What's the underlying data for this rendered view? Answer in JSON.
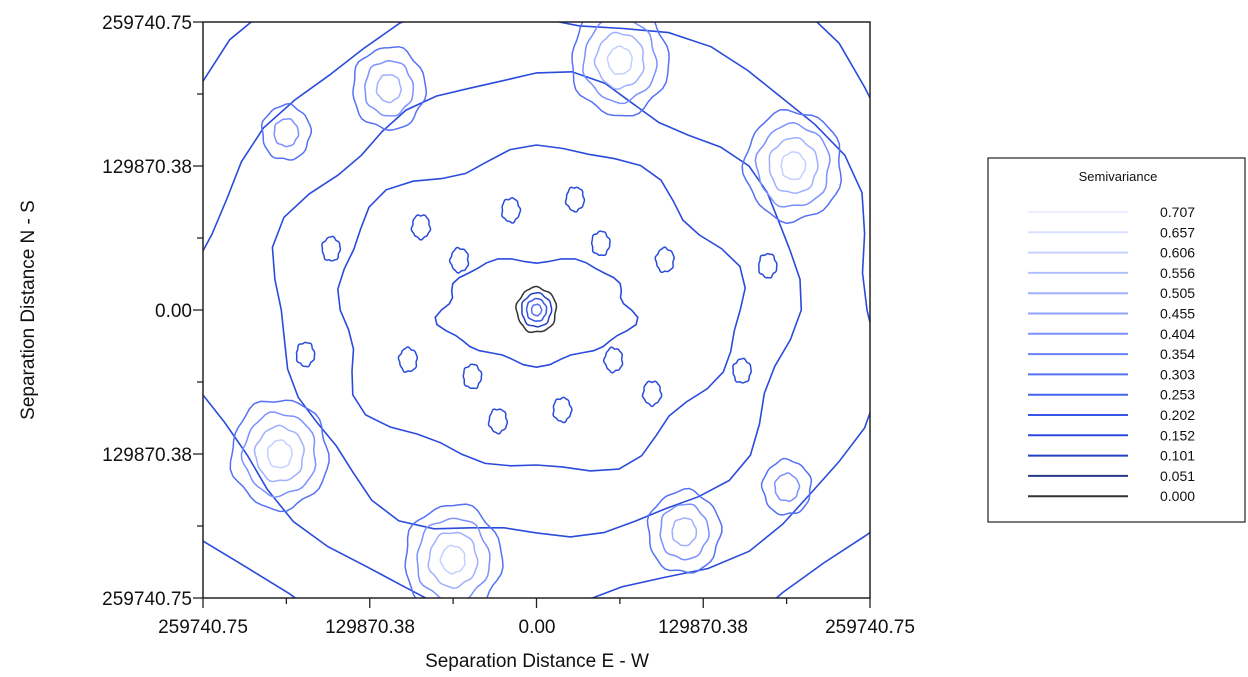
{
  "chart_data": {
    "type": "contour",
    "xlabel": "Separation Distance E - W",
    "ylabel": "Separation Distance N - S",
    "x_tick_labels": [
      "259740.75",
      "129870.38",
      "0.00",
      "129870.38",
      "259740.75"
    ],
    "y_tick_labels": [
      "259740.75",
      "129870.38",
      "0.00",
      "129870.38",
      "259740.75"
    ],
    "xlim": [
      -259740.75,
      259740.75
    ],
    "ylim": [
      -259740.75,
      259740.75
    ],
    "grid": false,
    "legend": {
      "title": "Semivariance",
      "placement": "right",
      "levels": [
        "0.707",
        "0.657",
        "0.606",
        "0.556",
        "0.505",
        "0.455",
        "0.404",
        "0.354",
        "0.303",
        "0.253",
        "0.202",
        "0.152",
        "0.101",
        "0.051",
        "0.000"
      ],
      "colors": [
        "#eaeeff",
        "#d9e0ff",
        "#c6d0ff",
        "#b3c0ff",
        "#a0b0ff",
        "#8ea1ff",
        "#7b91ff",
        "#6881fb",
        "#5571f5",
        "#4563ef",
        "#3656e8",
        "#2a4ade",
        "#2440c4",
        "#2a3a8a",
        "#333333"
      ]
    },
    "features": [
      {
        "kind": "center-peak",
        "x": 0,
        "y": 0,
        "rings": 4
      },
      {
        "kind": "hotspot",
        "x": 200000,
        "y": 130000,
        "rings": 4
      },
      {
        "kind": "hotspot",
        "x": -200000,
        "y": -130000,
        "rings": 4
      },
      {
        "kind": "hotspot",
        "x": 65000,
        "y": 225000,
        "rings": 4
      },
      {
        "kind": "hotspot",
        "x": -65000,
        "y": -225000,
        "rings": 4
      },
      {
        "kind": "hotspot",
        "x": -115000,
        "y": 200000,
        "rings": 3
      },
      {
        "kind": "hotspot",
        "x": 115000,
        "y": -200000,
        "rings": 3
      },
      {
        "kind": "hotspot",
        "x": -195000,
        "y": 160000,
        "rings": 2
      },
      {
        "kind": "hotspot",
        "x": 195000,
        "y": -160000,
        "rings": 2
      }
    ]
  }
}
